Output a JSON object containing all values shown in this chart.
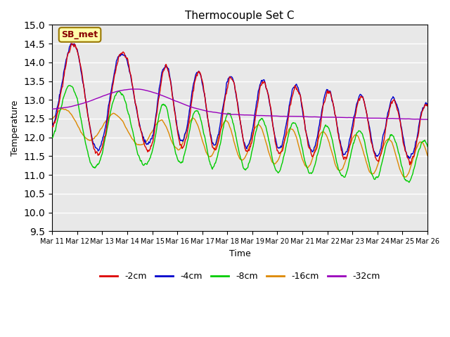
{
  "title": "Thermocouple Set C",
  "xlabel": "Time",
  "ylabel": "Temperature",
  "ylim": [
    9.5,
    15.0
  ],
  "yticks": [
    9.5,
    10.0,
    10.5,
    11.0,
    11.5,
    12.0,
    12.5,
    13.0,
    13.5,
    14.0,
    14.5,
    15.0
  ],
  "xtick_labels": [
    "Mar 11",
    "Mar 12",
    "Mar 13",
    "Mar 14",
    "Mar 15",
    "Mar 16",
    "Mar 17",
    "Mar 18",
    "Mar 19",
    "Mar 20",
    "Mar 21",
    "Mar 22",
    "Mar 23",
    "Mar 24",
    "Mar 25",
    "Mar 26"
  ],
  "line_colors": {
    "-2cm": "#dd0000",
    "-4cm": "#0000cc",
    "-8cm": "#00cc00",
    "-16cm": "#dd8800",
    "-32cm": "#9900bb"
  },
  "legend_labels": [
    "-2cm",
    "-4cm",
    "-8cm",
    "-16cm",
    "-32cm"
  ],
  "annotation_text": "SB_met",
  "bg_color": "#e8e8e8",
  "fig_color": "#ffffff",
  "linewidth": 1.0,
  "n_days": 15,
  "pts_per_day": 48
}
